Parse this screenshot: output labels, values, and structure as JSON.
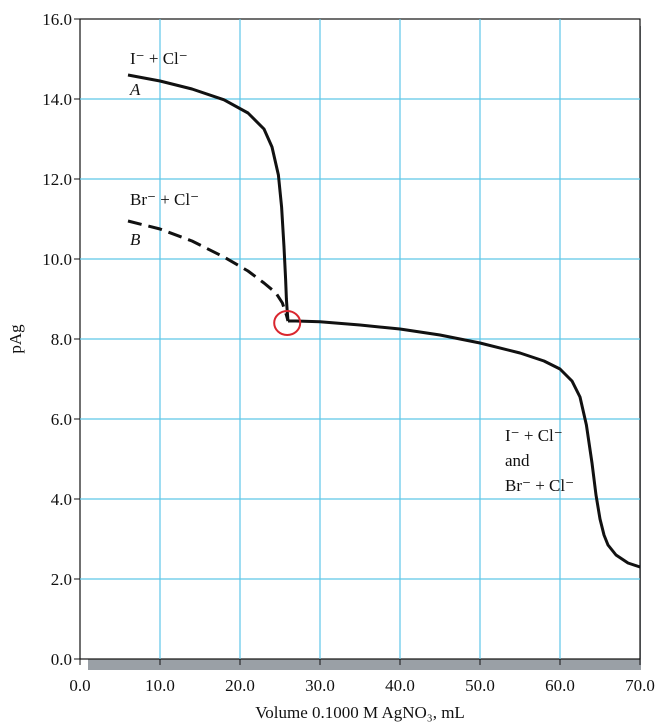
{
  "chart_data": {
    "type": "line",
    "title": "",
    "xlabel": "Volume 0.1000 M AgNO₃, mL",
    "ylabel": "pAg",
    "xlim": [
      0,
      70
    ],
    "ylim": [
      0,
      16
    ],
    "grid": true,
    "x_ticks": [
      "0.0",
      "10.0",
      "20.0",
      "30.0",
      "40.0",
      "50.0",
      "60.0",
      "70.0"
    ],
    "y_ticks": [
      "0.0",
      "2.0",
      "4.0",
      "6.0",
      "8.0",
      "10.0",
      "12.0",
      "14.0",
      "16.0"
    ],
    "series": [
      {
        "name": "A",
        "style": "solid",
        "x": [
          6,
          10,
          14,
          18,
          21,
          23,
          24,
          24.8,
          25.2,
          25.5,
          25.7,
          25.8,
          25.9,
          26.0
        ],
        "y": [
          14.6,
          14.45,
          14.25,
          13.98,
          13.65,
          13.25,
          12.8,
          12.1,
          11.3,
          10.3,
          9.5,
          9.0,
          8.7,
          8.45
        ]
      },
      {
        "name": "B",
        "style": "dashed",
        "x": [
          6,
          10,
          14,
          18,
          21,
          23,
          24.5,
          25.3,
          25.8,
          26.0
        ],
        "y": [
          10.95,
          10.75,
          10.45,
          10.05,
          9.7,
          9.4,
          9.15,
          8.9,
          8.6,
          8.45
        ]
      },
      {
        "name": "I⁻ + Cl⁻ and Br⁻ + Cl⁻",
        "style": "solid",
        "x": [
          26.0,
          27,
          30,
          35,
          40,
          45,
          50,
          55,
          58,
          60,
          61.5,
          62.5,
          63.3,
          64,
          64.5,
          65,
          65.5,
          66,
          67,
          68.5,
          70
        ],
        "y": [
          8.45,
          8.45,
          8.43,
          8.35,
          8.25,
          8.1,
          7.9,
          7.65,
          7.45,
          7.25,
          6.95,
          6.55,
          5.85,
          4.9,
          4.1,
          3.5,
          3.1,
          2.85,
          2.6,
          2.4,
          2.3
        ]
      }
    ],
    "annotations": {
      "a_label": "I⁻ + Cl⁻",
      "a_letter": "A",
      "b_label": "Br⁻ + Cl⁻",
      "b_letter": "B",
      "c_line1": "I⁻ + Cl⁻",
      "c_line2": "and",
      "c_line3": "Br⁻ + Cl⁻"
    },
    "colors": {
      "grid": "#5ec6e8",
      "curve": "#111111",
      "highlight_circle": "#d9262e",
      "frame_shadow": "#9aa0a6"
    }
  }
}
